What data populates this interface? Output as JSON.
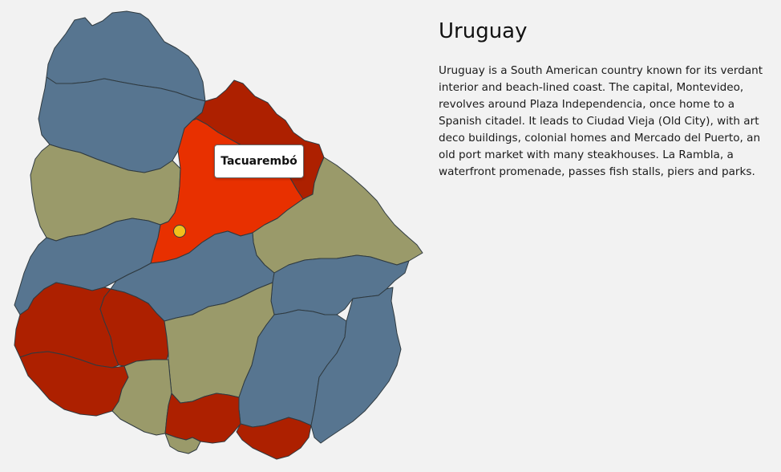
{
  "country": {
    "name": "Uruguay",
    "description": "Uruguay is a South American country known for its verdant interior and beach-lined coast. The capital, Montevideo, revolves around Plaza Independencia, once home to a Spanish citadel. It leads to Ciudad Vieja (Old City), with art deco buildings, colonial homes and Mercado del Puerto, an old port market with many steakhouses. La Rambla, a waterfront promenade, passes fish stalls, piers and parks."
  },
  "map": {
    "hovered_department": "Tacuarembó",
    "colors": {
      "blue": "#577590",
      "olive": "#9a9a6a",
      "dark_red": "#ad2000",
      "highlight": "#e83000",
      "marker": "#f2c01c",
      "stroke": "#2f3a40"
    }
  }
}
